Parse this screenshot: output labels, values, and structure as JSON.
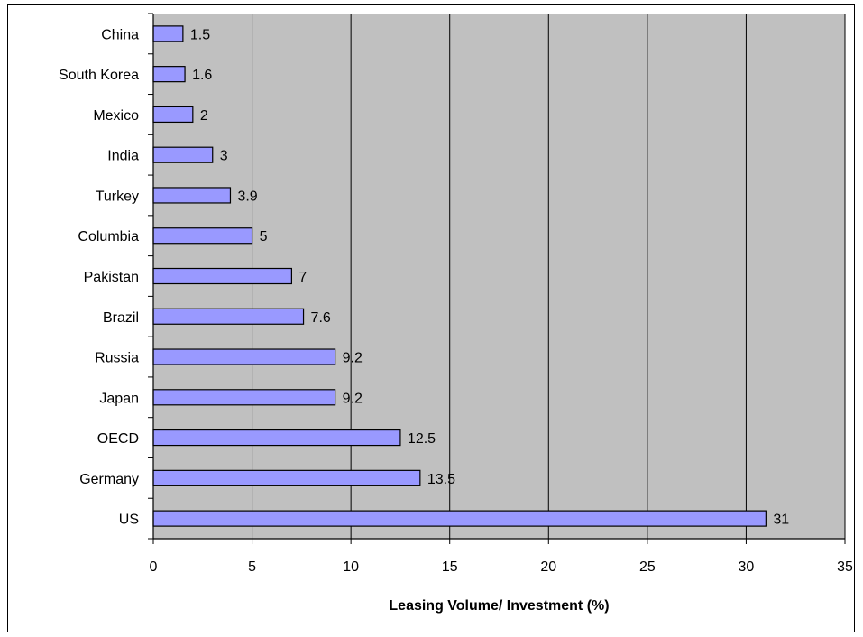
{
  "chart_data": {
    "type": "bar",
    "orientation": "horizontal",
    "categories": [
      "China",
      "South Korea",
      "Mexico",
      "India",
      "Turkey",
      "Columbia",
      "Pakistan",
      "Brazil",
      "Russia",
      "Japan",
      "OECD",
      "Germany",
      "US"
    ],
    "values": [
      1.5,
      1.6,
      2,
      3,
      3.9,
      5,
      7,
      7.6,
      9.2,
      9.2,
      12.5,
      13.5,
      31
    ],
    "data_labels": [
      "1.5",
      "1.6",
      "2",
      "3",
      "3.9",
      "5",
      "7",
      "7.6",
      "9.2",
      "9.2",
      "12.5",
      "13.5",
      "31"
    ],
    "xlabel": "Leasing Volume/ Investment (%)",
    "ylabel": "",
    "xlim": [
      0,
      35
    ],
    "xticks": [
      0,
      5,
      10,
      15,
      20,
      25,
      30,
      35
    ],
    "xtick_labels": [
      "0",
      "5",
      "10",
      "15",
      "20",
      "25",
      "30",
      "35"
    ],
    "grid": "vertical",
    "legend": "none",
    "colors": {
      "bar_fill": "#9999ff",
      "bar_stroke": "#000000",
      "plot_background": "#c0c0c0",
      "gridline": "#000000"
    }
  }
}
